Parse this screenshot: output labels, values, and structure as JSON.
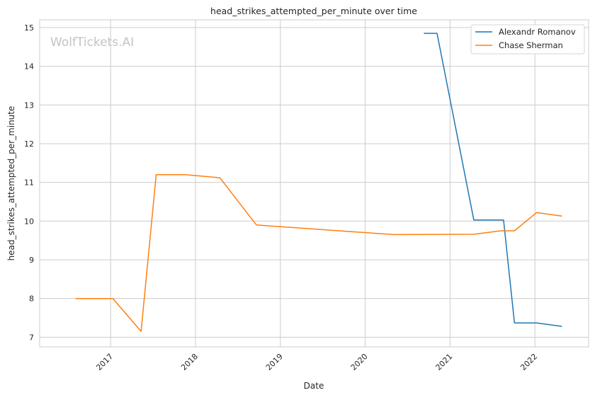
{
  "chart_data": {
    "type": "line",
    "title": "head_strikes_attempted_per_minute over time",
    "xlabel": "Date",
    "ylabel": "head_strikes_attempted_per_minute",
    "watermark": "WolfTickets.AI",
    "xlim": [
      "2016-03-01",
      "2022-08-20"
    ],
    "ylim": [
      6.75,
      15.2
    ],
    "x_ticks": [
      "2017",
      "2018",
      "2019",
      "2020",
      "2021",
      "2022"
    ],
    "y_ticks": [
      7,
      8,
      9,
      10,
      11,
      12,
      13,
      14,
      15
    ],
    "grid": true,
    "legend_position": "top-right",
    "series": [
      {
        "name": "Alexandr Romanov",
        "color": "#1f77b4",
        "x": [
          "2020-09-10",
          "2020-11-06",
          "2021-04-13",
          "2021-08-19",
          "2021-10-05",
          "2022-01-08",
          "2022-04-27"
        ],
        "y": [
          14.85,
          14.85,
          10.03,
          10.03,
          7.37,
          7.37,
          7.28
        ]
      },
      {
        "name": "Chase Sherman",
        "color": "#ff7f0e",
        "x": [
          "2016-08-03",
          "2017-01-11",
          "2017-05-12",
          "2017-07-16",
          "2017-11-21",
          "2018-04-16",
          "2018-09-20",
          "2020-05-05",
          "2021-04-13",
          "2021-08-08",
          "2021-10-05",
          "2022-01-08",
          "2022-04-27"
        ],
        "y": [
          8.0,
          8.0,
          7.15,
          11.2,
          11.2,
          11.12,
          9.9,
          9.65,
          9.66,
          9.75,
          9.75,
          10.22,
          10.13
        ]
      }
    ]
  }
}
